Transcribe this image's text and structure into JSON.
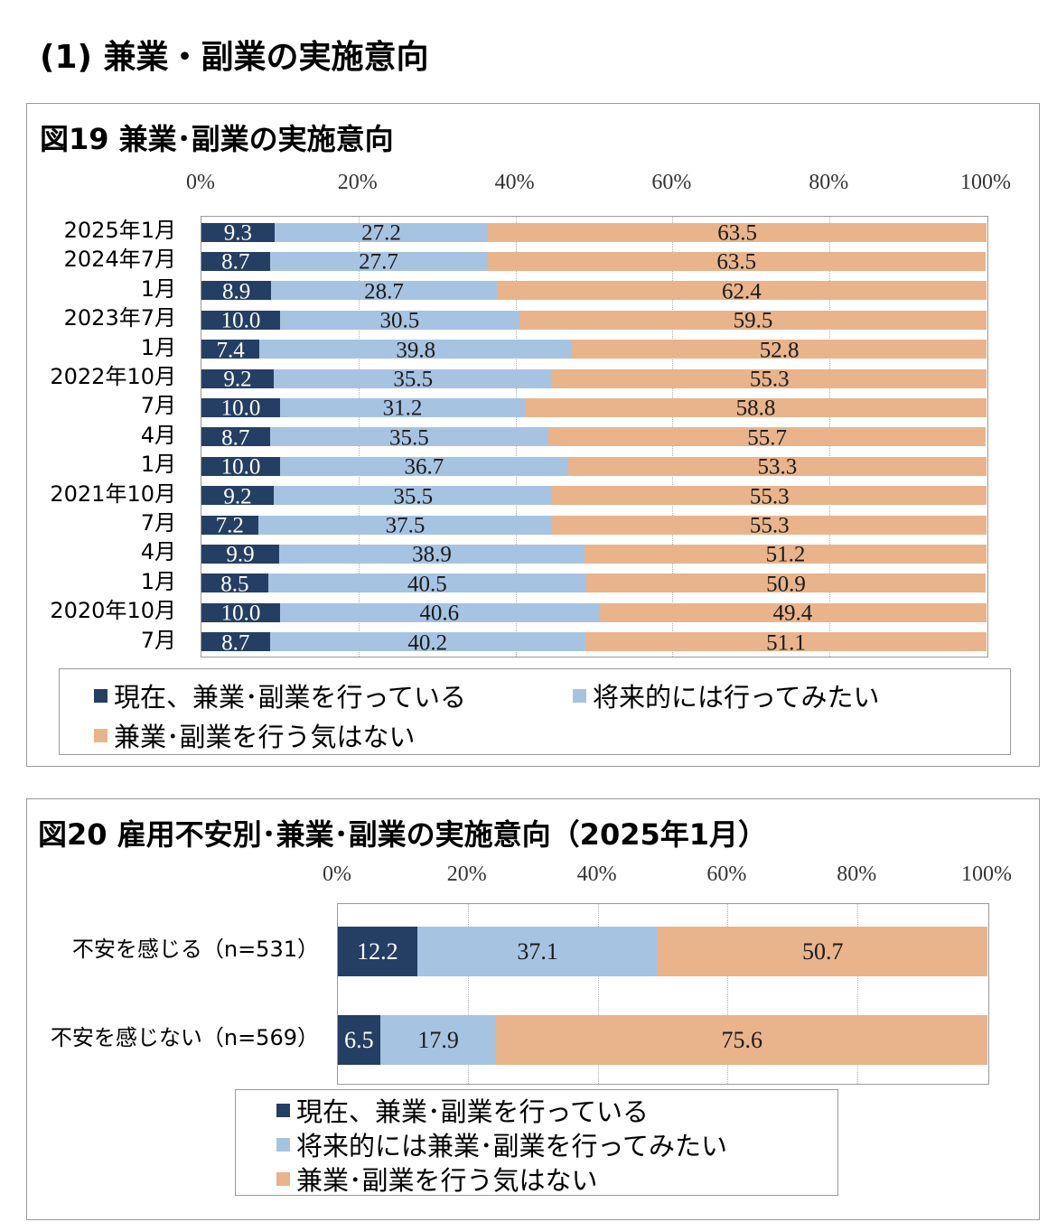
{
  "page": {
    "section_heading": "(1) 兼業・副業の実施意向"
  },
  "colors": {
    "current": "#243f63",
    "future": "#a7c3e2",
    "none": "#e9b48c"
  },
  "chart_data": [
    {
      "type": "bar",
      "orientation": "horizontal",
      "stacked": "percent",
      "title": "図19 兼業･副業の実施意向",
      "xlim": [
        0,
        100
      ],
      "xticks": [
        "0%",
        "20%",
        "40%",
        "60%",
        "80%",
        "100%"
      ],
      "categories": [
        "2025年1月",
        "2024年7月",
        "1月",
        "2023年7月",
        "1月",
        "2022年10月",
        "7月",
        "4月",
        "1月",
        "2021年10月",
        "7月",
        "4月",
        "1月",
        "2020年10月",
        "7月"
      ],
      "series": [
        {
          "name": "現在、兼業･副業を行っている",
          "values": [
            9.3,
            8.7,
            8.9,
            10.0,
            7.4,
            9.2,
            10.0,
            8.7,
            10.0,
            9.2,
            7.2,
            9.9,
            8.5,
            10.0,
            8.7
          ]
        },
        {
          "name": "将来的には行ってみたい",
          "values": [
            27.2,
            27.7,
            28.7,
            30.5,
            39.8,
            35.5,
            31.2,
            35.5,
            36.7,
            35.5,
            37.5,
            38.9,
            40.5,
            40.6,
            40.2
          ]
        },
        {
          "name": "兼業･副業を行う気はない",
          "values": [
            63.5,
            63.5,
            62.4,
            59.5,
            52.8,
            55.3,
            58.8,
            55.7,
            53.3,
            55.3,
            55.3,
            51.2,
            50.9,
            49.4,
            51.1
          ]
        }
      ],
      "labels": [
        [
          "9.3",
          "27.2",
          "63.5"
        ],
        [
          "8.7",
          "27.7",
          "63.5"
        ],
        [
          "8.9",
          "28.7",
          "62.4"
        ],
        [
          "10.0",
          "30.5",
          "59.5"
        ],
        [
          "7.4",
          "39.8",
          "52.8"
        ],
        [
          "9.2",
          "35.5",
          "55.3"
        ],
        [
          "10.0",
          "31.2",
          "58.8"
        ],
        [
          "8.7",
          "35.5",
          "55.7"
        ],
        [
          "10.0",
          "36.7",
          "53.3"
        ],
        [
          "9.2",
          "35.5",
          "55.3"
        ],
        [
          "7.2",
          "37.5",
          "55.3"
        ],
        [
          "9.9",
          "38.9",
          "51.2"
        ],
        [
          "8.5",
          "40.5",
          "50.9"
        ],
        [
          "10.0",
          "40.6",
          "49.4"
        ],
        [
          "8.7",
          "40.2",
          "51.1"
        ]
      ],
      "legend": {
        "placement": "bottom",
        "entries": [
          "現在、兼業･副業を行っている",
          "将来的には行ってみたい",
          "兼業･副業を行う気はない"
        ]
      },
      "grid": true
    },
    {
      "type": "bar",
      "orientation": "horizontal",
      "stacked": "percent",
      "title": "図20 雇用不安別･兼業･副業の実施意向（2025年1月）",
      "xlim": [
        0,
        100
      ],
      "xticks": [
        "0%",
        "20%",
        "40%",
        "60%",
        "80%",
        "100%"
      ],
      "categories": [
        "不安を感じる（n=531）",
        "不安を感じない（n=569）"
      ],
      "series": [
        {
          "name": "現在、兼業･副業を行っている",
          "values": [
            12.2,
            6.5
          ]
        },
        {
          "name": "将来的には兼業･副業を行ってみたい",
          "values": [
            37.1,
            17.9
          ]
        },
        {
          "name": "兼業･副業を行う気はない",
          "values": [
            50.7,
            75.6
          ]
        }
      ],
      "labels": [
        [
          "12.2",
          "37.1",
          "50.7"
        ],
        [
          "6.5",
          "17.9",
          "75.6"
        ]
      ],
      "legend": {
        "placement": "bottom",
        "entries": [
          "現在、兼業･副業を行っている",
          "将来的には兼業･副業を行ってみたい",
          "兼業･副業を行う気はない"
        ]
      },
      "grid": true
    }
  ]
}
